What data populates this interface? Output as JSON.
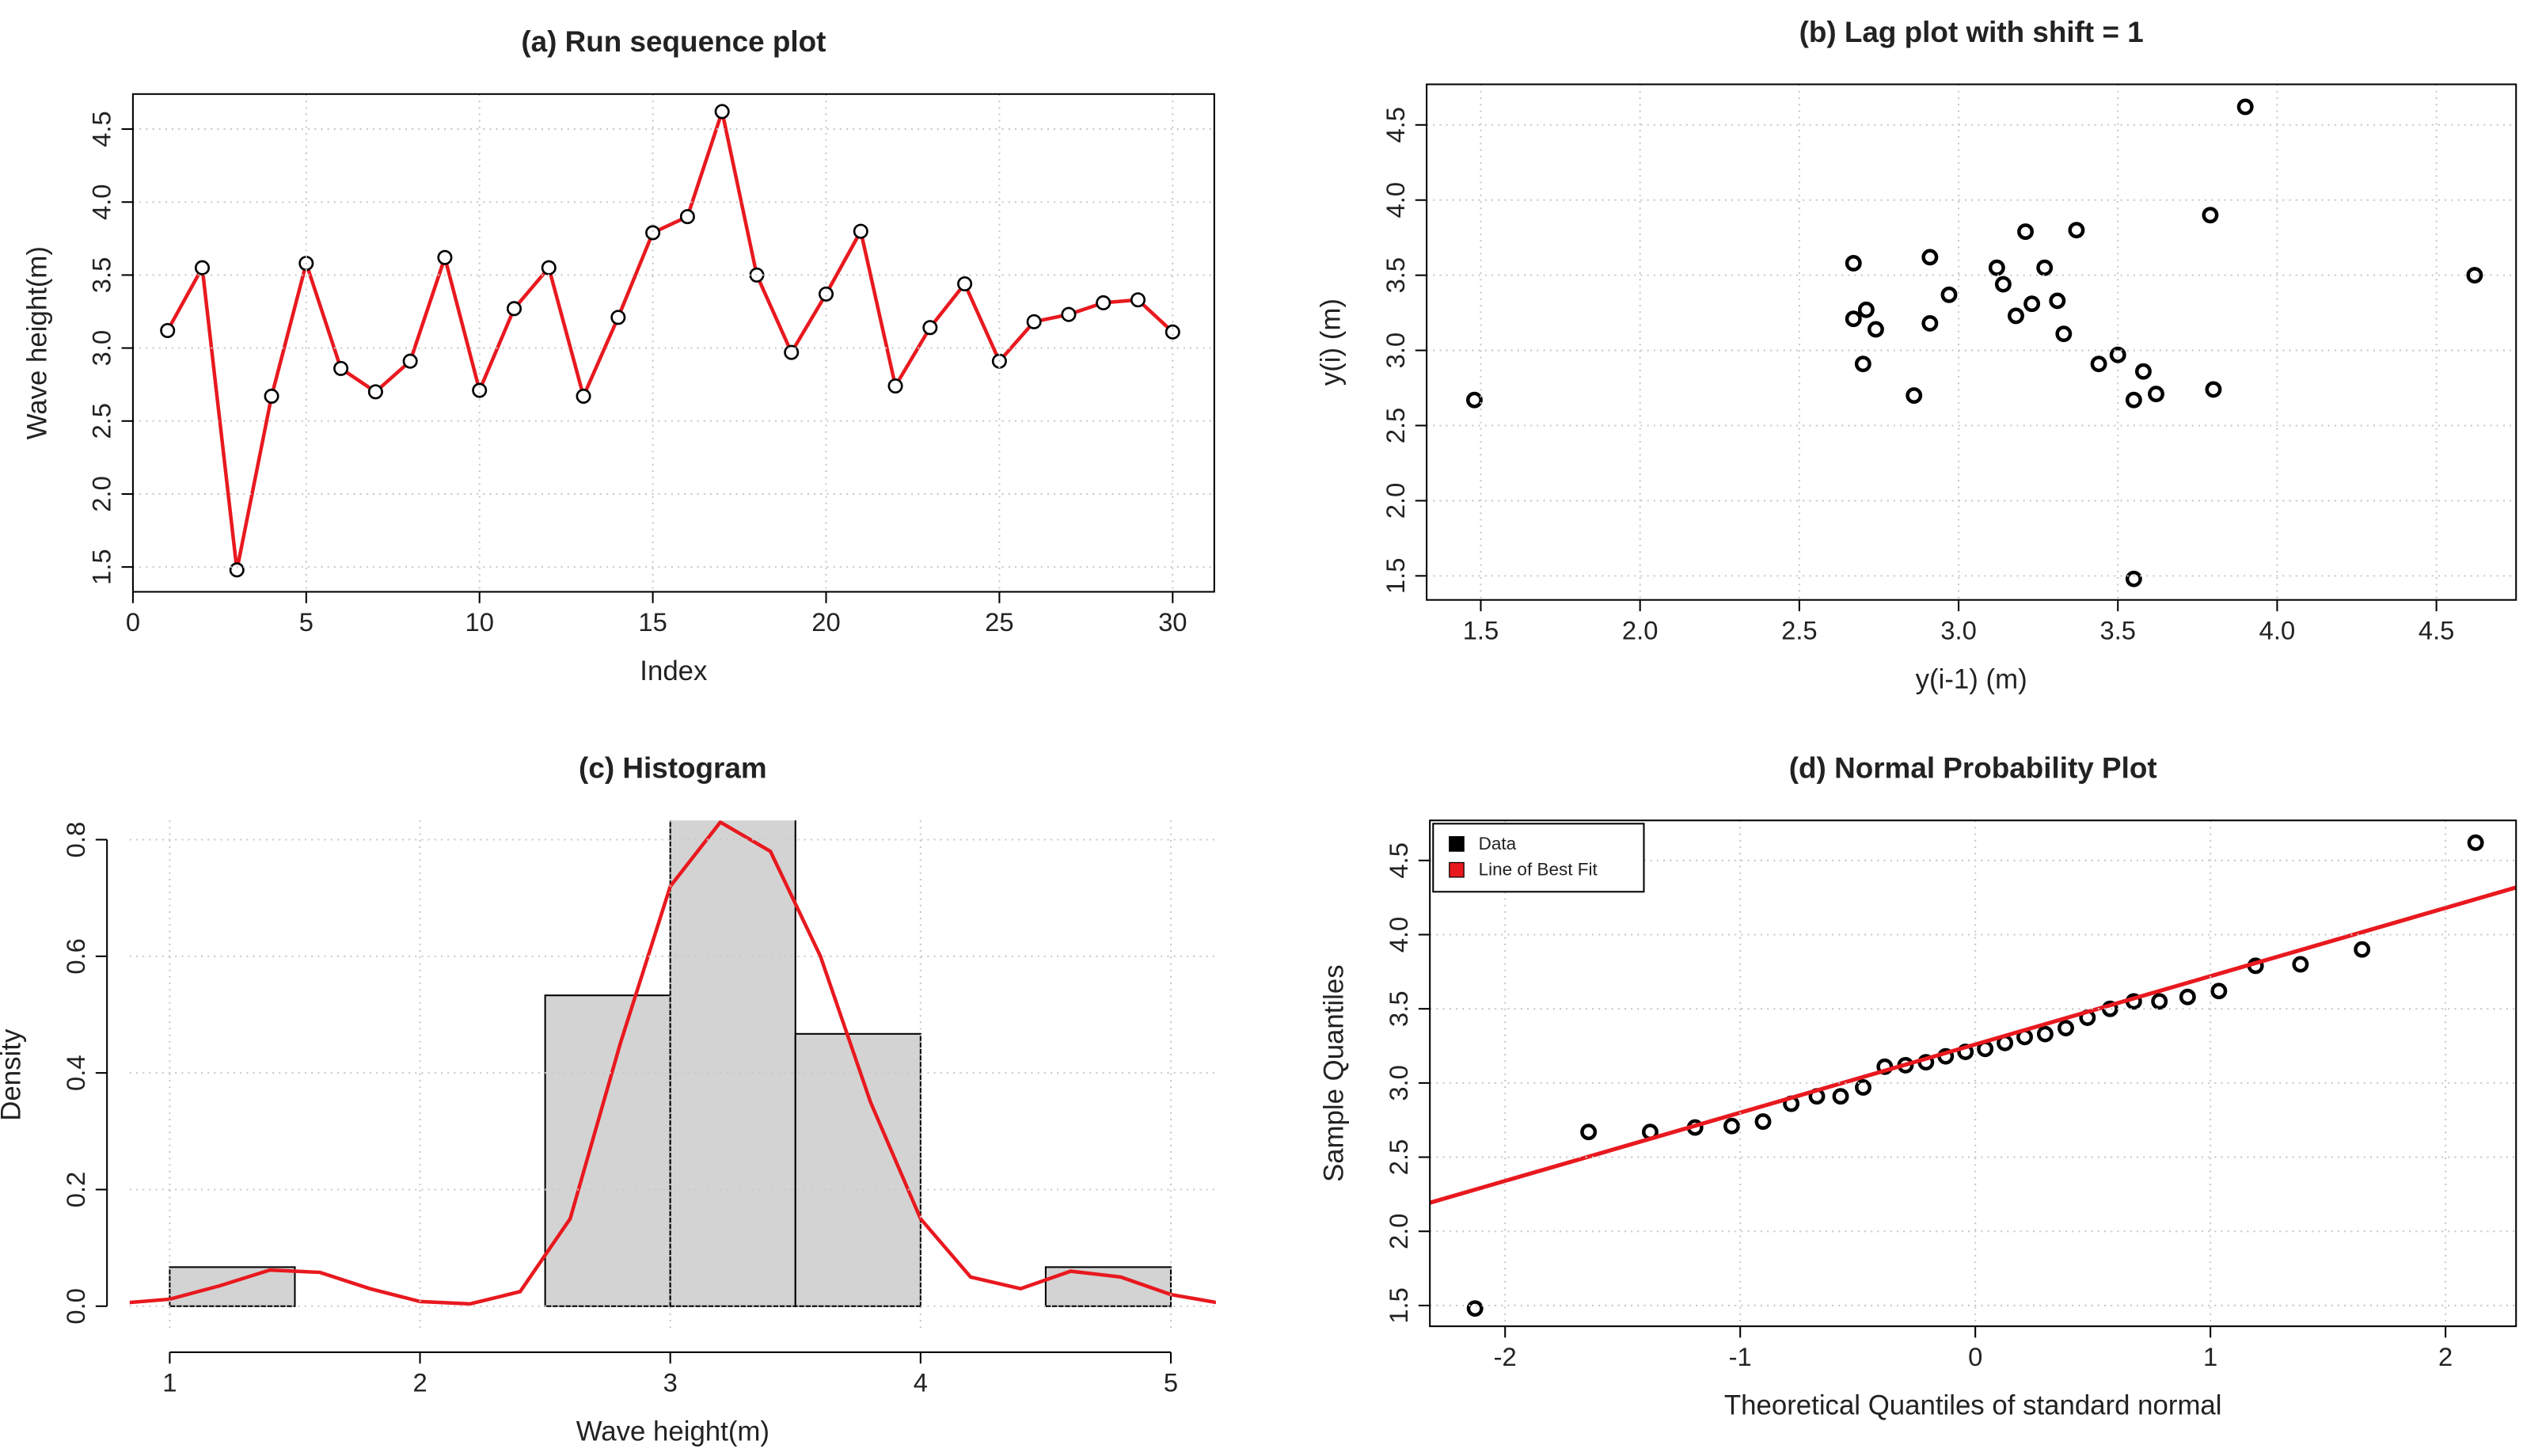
{
  "chart_data": [
    {
      "type": "line",
      "title": "(a) Run sequence plot",
      "xlabel": "Index",
      "ylabel": "Wave height(m)",
      "color": "#e8191f",
      "x": [
        1,
        2,
        3,
        4,
        5,
        6,
        7,
        8,
        9,
        10,
        11,
        12,
        13,
        14,
        15,
        16,
        17,
        18,
        19,
        20,
        21,
        22,
        23,
        24,
        25,
        26,
        27,
        28,
        29,
        30
      ],
      "values": [
        3.12,
        3.55,
        1.48,
        2.67,
        3.58,
        2.86,
        2.7,
        2.91,
        3.62,
        2.71,
        3.27,
        3.55,
        2.67,
        3.21,
        3.79,
        3.9,
        4.62,
        3.5,
        2.97,
        3.37,
        3.8,
        2.74,
        3.14,
        3.44,
        2.91,
        3.18,
        3.23,
        3.31,
        3.33,
        3.11
      ],
      "xlim": [
        0,
        31.2
      ],
      "xticks": [
        0,
        5,
        10,
        15,
        20,
        25,
        30
      ],
      "ylim": [
        1.33,
        4.74
      ],
      "yticks": [
        1.5,
        {
          "value": 2,
          "label": "2.0"
        },
        2.5,
        {
          "value": 3,
          "label": "3.0"
        },
        3.5,
        {
          "value": 4,
          "label": "4.0"
        },
        4.5
      ],
      "grid": true
    },
    {
      "type": "scatter",
      "title": "(b) Lag plot with shift = 1",
      "xlabel": "y(i-1) (m)",
      "ylabel": "y(i) (m)",
      "color": "#000000",
      "x": [
        3.12,
        3.55,
        1.48,
        2.67,
        3.58,
        2.86,
        2.7,
        2.91,
        3.62,
        2.71,
        3.27,
        3.55,
        2.67,
        3.21,
        3.79,
        3.9,
        4.62,
        3.5,
        2.97,
        3.37,
        3.8,
        2.74,
        3.14,
        3.44,
        2.91,
        3.18,
        3.23,
        3.31,
        3.33
      ],
      "values": [
        3.55,
        1.48,
        2.67,
        3.58,
        2.86,
        2.7,
        2.91,
        3.62,
        2.71,
        3.27,
        3.55,
        2.67,
        3.21,
        3.79,
        3.9,
        4.62,
        3.5,
        2.97,
        3.37,
        3.8,
        2.74,
        3.14,
        3.44,
        2.91,
        3.18,
        3.23,
        3.31,
        3.33,
        3.11
      ],
      "xlim": [
        1.33,
        4.75
      ],
      "xticks": [
        1.5,
        {
          "value": 2,
          "label": "2.0"
        },
        2.5,
        {
          "value": 3,
          "label": "3.0"
        },
        3.5,
        {
          "value": 4,
          "label": "4.0"
        },
        4.5
      ],
      "ylim": [
        1.34,
        4.77
      ],
      "yticks": [
        1.5,
        {
          "value": 2,
          "label": "2.0"
        },
        2.5,
        {
          "value": 3,
          "label": "3.0"
        },
        3.5,
        {
          "value": 4,
          "label": "4.0"
        },
        4.5
      ],
      "grid": true
    },
    {
      "type": "histogram",
      "title": "(c) Histogram",
      "xlabel": "Wave height(m)",
      "ylabel": "Density",
      "color": "#d3d3d3",
      "bins": [
        1,
        1.5,
        2,
        2.5,
        3,
        3.5,
        4,
        4.5,
        5
      ],
      "values": [
        0.067,
        0,
        0,
        0.533,
        0.867,
        0.467,
        0,
        0.067
      ],
      "curve": {
        "color": "#e8191f",
        "x": [
          0.8,
          1.0,
          1.2,
          1.4,
          1.6,
          1.8,
          2.0,
          2.2,
          2.4,
          2.6,
          2.8,
          3.0,
          3.2,
          3.4,
          3.6,
          3.8,
          4.0,
          4.2,
          4.4,
          4.6,
          4.8,
          5.0,
          5.2
        ],
        "y": [
          0.005,
          0.012,
          0.035,
          0.062,
          0.058,
          0.03,
          0.008,
          0.004,
          0.025,
          0.15,
          0.45,
          0.72,
          0.83,
          0.78,
          0.6,
          0.35,
          0.15,
          0.05,
          0.03,
          0.06,
          0.05,
          0.02,
          0.005
        ]
      },
      "xlim": [
        0.84,
        5.18
      ],
      "xticks": [
        1,
        2,
        3,
        4,
        5
      ],
      "ylim": [
        -0.04,
        0.833
      ],
      "yticks": [
        {
          "value": 0,
          "label": "0.0"
        },
        0.2,
        0.4,
        0.6,
        0.8
      ],
      "grid": true
    },
    {
      "type": "qq",
      "title": "(d) Normal Probability Plot",
      "xlabel": "Theoretical Quantiles of standard normal",
      "ylabel": "Sample Quantiles",
      "legend": "topleft",
      "series": [
        {
          "name": "Data",
          "color": "#000000",
          "x": [
            -2.128,
            -1.645,
            -1.383,
            -1.192,
            -1.036,
            -0.903,
            -0.783,
            -0.674,
            -0.573,
            -0.477,
            -0.385,
            -0.297,
            -0.21,
            -0.126,
            -0.042,
            0.042,
            0.126,
            0.21,
            0.297,
            0.385,
            0.477,
            0.573,
            0.674,
            0.783,
            0.903,
            1.036,
            1.192,
            1.383,
            1.645,
            2.128
          ],
          "values": [
            1.48,
            2.67,
            2.67,
            2.7,
            2.71,
            2.74,
            2.86,
            2.91,
            2.91,
            2.97,
            3.11,
            3.12,
            3.14,
            3.18,
            3.21,
            3.23,
            3.27,
            3.31,
            3.33,
            3.37,
            3.44,
            3.5,
            3.55,
            3.55,
            3.58,
            3.62,
            3.79,
            3.8,
            3.9,
            4.62
          ]
        },
        {
          "name": "Line of Best Fit",
          "color": "#e8191f",
          "intercept": 3.26,
          "slope": 0.46
        }
      ],
      "xlim": [
        -2.32,
        2.3
      ],
      "xticks": [
        -2,
        -1,
        0,
        1,
        2
      ],
      "ylim": [
        1.36,
        4.77
      ],
      "yticks": [
        1.5,
        {
          "value": 2,
          "label": "2.0"
        },
        2.5,
        {
          "value": 3,
          "label": "3.0"
        },
        3.5,
        {
          "value": 4,
          "label": "4.0"
        },
        4.5
      ],
      "grid": true
    }
  ]
}
